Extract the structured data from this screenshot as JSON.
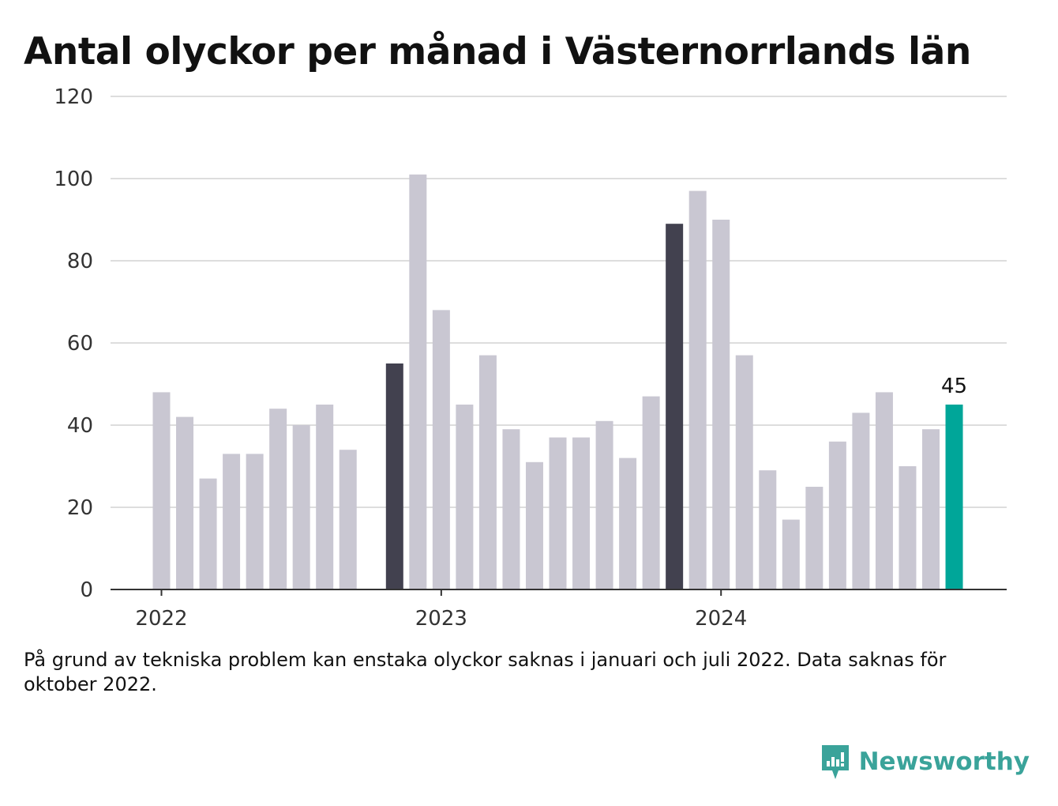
{
  "title": "Antal olyckor per månad i Västernorrlands län",
  "note": "På grund av tekniska problem kan enstaka olyckor saknas i januari och juli 2022. Data saknas för oktober 2022.",
  "brand": {
    "name": "Newsworthy",
    "icon": "newsworthy-logo-icon",
    "color": "#3aa39a"
  },
  "colors": {
    "default": "#c9c7d2",
    "highlight": "#42414f",
    "latest": "#00a699",
    "grid": "#dddddd",
    "axis": "#333333"
  },
  "chart_data": {
    "type": "bar",
    "title": "Antal olyckor per månad i Västernorrlands län",
    "xlabel": "",
    "ylabel": "",
    "ylim": [
      0,
      120
    ],
    "yticks": [
      "0",
      "20",
      "40",
      "60",
      "80",
      "100",
      "120"
    ],
    "xticks": [
      {
        "label": "2022",
        "at": "2022-01"
      },
      {
        "label": "2023",
        "at": "2023-01"
      },
      {
        "label": "2024",
        "at": "2024-01"
      }
    ],
    "grid": true,
    "categories": [
      "2022-01",
      "2022-02",
      "2022-03",
      "2022-04",
      "2022-05",
      "2022-06",
      "2022-07",
      "2022-08",
      "2022-09",
      "2022-10",
      "2022-11",
      "2022-12",
      "2023-01",
      "2023-02",
      "2023-03",
      "2023-04",
      "2023-05",
      "2023-06",
      "2023-07",
      "2023-08",
      "2023-09",
      "2023-10",
      "2023-11",
      "2023-12",
      "2024-01",
      "2024-02",
      "2024-03",
      "2024-04",
      "2024-05",
      "2024-06",
      "2024-07",
      "2024-08",
      "2024-09",
      "2024-10",
      "2024-11",
      "2024-12"
    ],
    "values": [
      48,
      42,
      27,
      33,
      33,
      44,
      40,
      45,
      34,
      null,
      55,
      101,
      68,
      45,
      57,
      39,
      31,
      37,
      37,
      41,
      32,
      47,
      89,
      97,
      90,
      57,
      29,
      17,
      25,
      36,
      43,
      48,
      30,
      39,
      45,
      null
    ],
    "highlighted": [
      "2022-11",
      "2023-11"
    ],
    "latest": "2024-11",
    "data_labels": [
      {
        "category": "2024-11",
        "text": "45"
      }
    ]
  }
}
